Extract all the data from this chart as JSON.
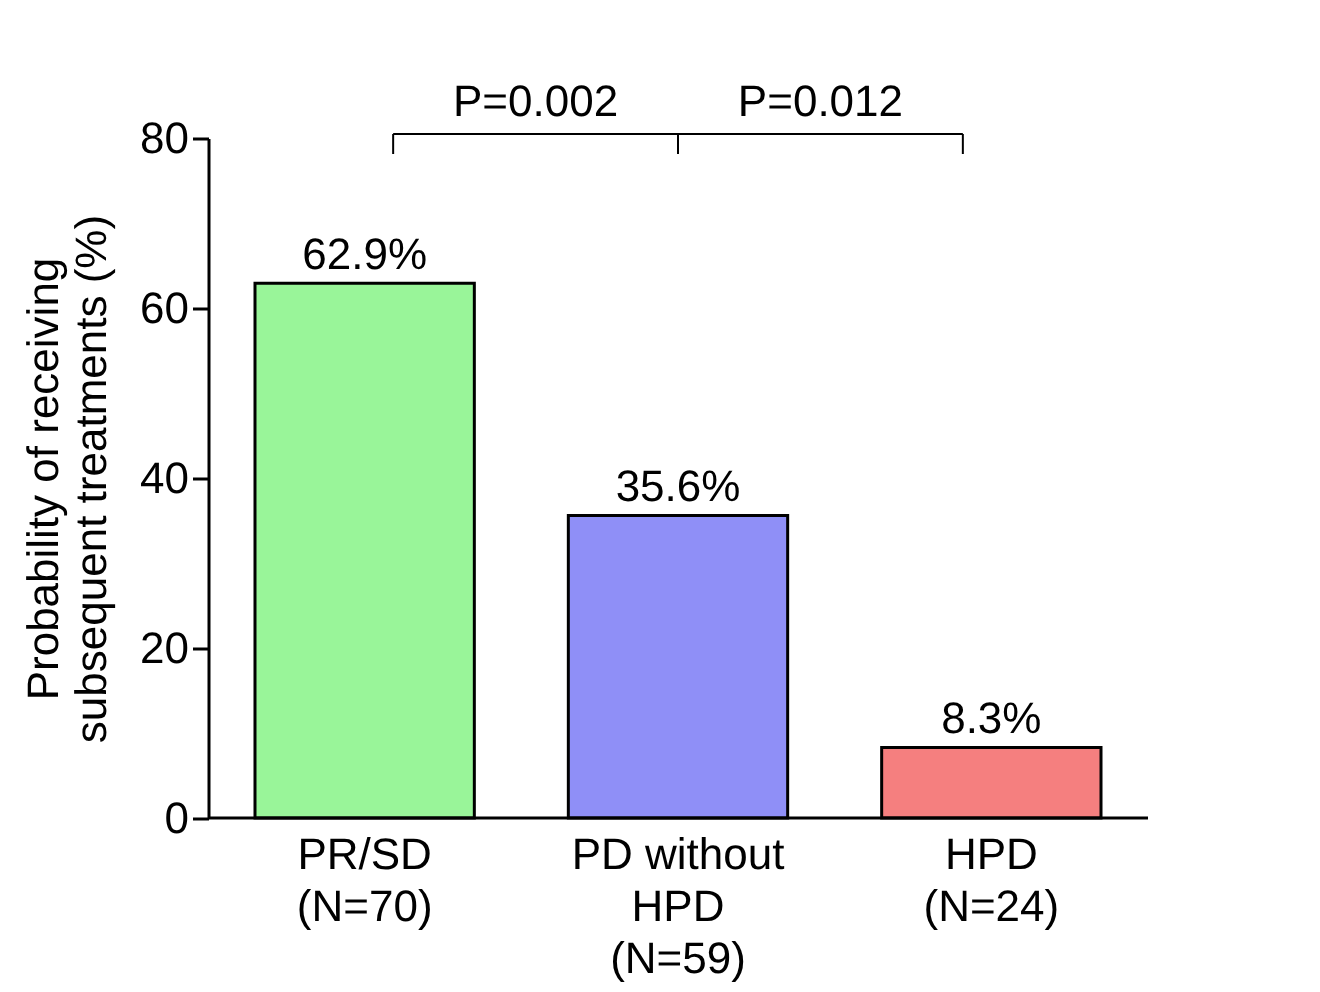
{
  "chart_data": {
    "type": "bar",
    "ylabel": "Probability of receiving\nsubsequent treatments (%)",
    "categories": [
      "PR/SD\n(N=70)",
      "PD without\nHPD\n(N=59)",
      "HPD\n(N=24)"
    ],
    "values": [
      62.9,
      35.6,
      8.3
    ],
    "colors": [
      "#99f599",
      "#8f8ff7",
      "#f57f7f"
    ],
    "value_labels": [
      "62.9%",
      "35.6%",
      "8.3%"
    ],
    "ylim": [
      0,
      80
    ],
    "yticks": [
      0,
      20,
      40,
      60,
      80
    ],
    "grid": false,
    "legend": false,
    "annotations": [
      "P=0.002",
      "P=0.012"
    ]
  }
}
